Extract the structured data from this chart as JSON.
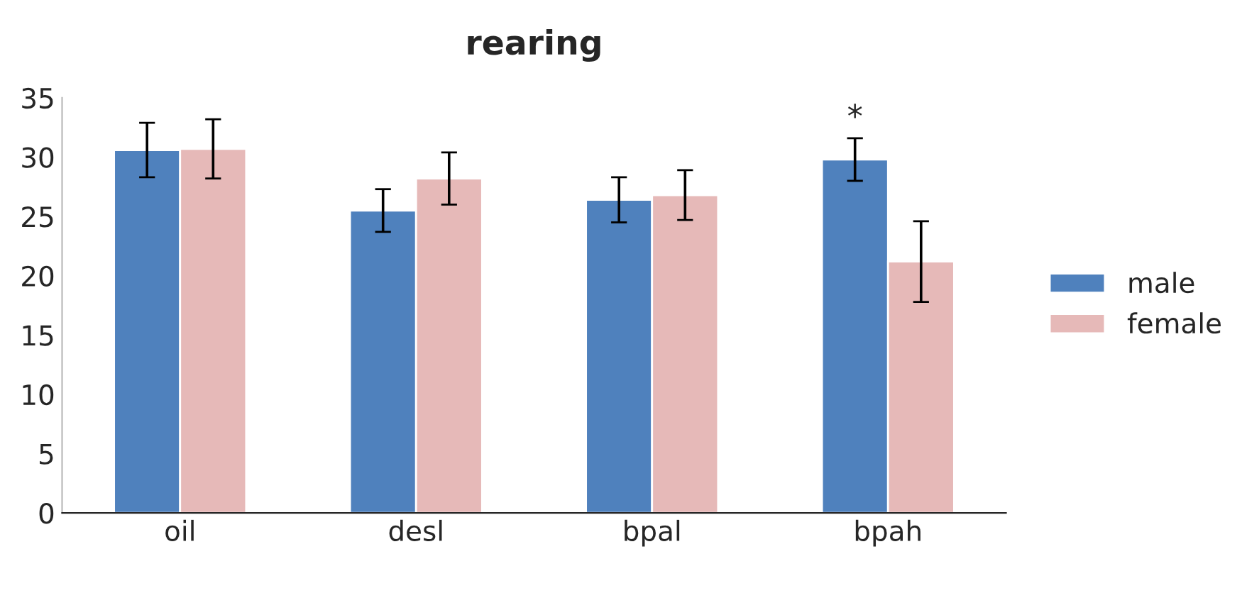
{
  "chart_data": {
    "type": "bar",
    "title": "rearing",
    "categories": [
      "oil",
      "desl",
      "bpal",
      "bpah"
    ],
    "series": [
      {
        "name": "male",
        "color": "#4f81bd",
        "values": [
          30.6,
          25.5,
          26.4,
          29.8
        ],
        "errors": [
          2.3,
          1.8,
          1.9,
          1.8
        ]
      },
      {
        "name": "female",
        "color": "#e6b9b8",
        "values": [
          30.7,
          28.2,
          26.8,
          21.2
        ],
        "errors": [
          2.5,
          2.2,
          2.1,
          3.4
        ]
      }
    ],
    "ylim": [
      0,
      35
    ],
    "yticks": [
      0,
      5,
      10,
      15,
      20,
      25,
      30,
      35
    ],
    "grid": false,
    "legend": "right",
    "annotations": [
      "*"
    ]
  }
}
